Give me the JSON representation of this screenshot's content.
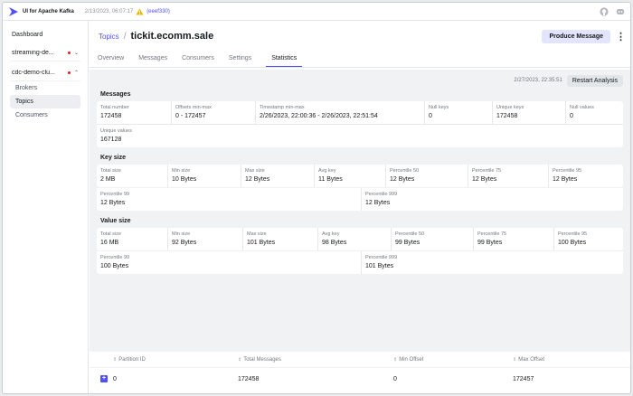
{
  "app": {
    "title": "UI for Apache Kafka",
    "version_date": "2/13/2023, 06:07:17",
    "version_hash": "(eeef330)"
  },
  "sidebar": {
    "dashboard": "Dashboard",
    "clusters": [
      {
        "name": "streaming-de..."
      },
      {
        "name": "cdc-demo-clu..."
      }
    ],
    "items": [
      "Brokers",
      "Topics",
      "Consumers"
    ]
  },
  "header": {
    "breadcrumb": "Topics",
    "topic": "tickit.ecomm.sale",
    "produce_label": "Produce Message"
  },
  "tabs": [
    "Overview",
    "Messages",
    "Consumers",
    "Settings",
    "Statistics"
  ],
  "analysis": {
    "date": "2/27/2023, 22:35:51",
    "restart_label": "Restart Analysis"
  },
  "messages": {
    "title": "Messages",
    "cells": [
      {
        "label": "Total number",
        "value": "172458"
      },
      {
        "label": "Offsets min-max",
        "value": "0 - 172457"
      },
      {
        "label": "Timestamp min-max",
        "value": "2/26/2023, 22:00:36 - 2/26/2023, 22:51:54"
      },
      {
        "label": "Null keys",
        "value": "0"
      },
      {
        "label": "Unique keys",
        "value": "172458"
      },
      {
        "label": "Null values",
        "value": "0"
      }
    ],
    "extra": {
      "label": "Unique values",
      "value": "167128"
    }
  },
  "key_size": {
    "title": "Key size",
    "cells": [
      {
        "label": "Total size",
        "value": "2 MB"
      },
      {
        "label": "Min size",
        "value": "10 Bytes"
      },
      {
        "label": "Max size",
        "value": "12 Bytes"
      },
      {
        "label": "Avg key",
        "value": "11 Bytes"
      },
      {
        "label": "Percentile 50",
        "value": "12 Bytes"
      },
      {
        "label": "Percentile 75",
        "value": "12 Bytes"
      },
      {
        "label": "Percentile 95",
        "value": "12 Bytes"
      }
    ],
    "extra": [
      {
        "label": "Percentile 99",
        "value": "12 Bytes"
      },
      {
        "label": "Percentile 999",
        "value": "12 Bytes"
      }
    ]
  },
  "value_size": {
    "title": "Value size",
    "cells": [
      {
        "label": "Total size",
        "value": "16 MB"
      },
      {
        "label": "Min size",
        "value": "92 Bytes"
      },
      {
        "label": "Max size",
        "value": "101 Bytes"
      },
      {
        "label": "Avg key",
        "value": "98 Bytes"
      },
      {
        "label": "Percentile 50",
        "value": "99 Bytes"
      },
      {
        "label": "Percentile 75",
        "value": "99 Bytes"
      },
      {
        "label": "Percentile 95",
        "value": "100 Bytes"
      }
    ],
    "extra": [
      {
        "label": "Percentile 99",
        "value": "100 Bytes"
      },
      {
        "label": "Percentile 999",
        "value": "101 Bytes"
      }
    ]
  },
  "partitions": {
    "headers": [
      "Partition ID",
      "Total Messages",
      "Min Offset",
      "Max Offset"
    ],
    "rows": [
      {
        "id": "0",
        "total": "172458",
        "min": "0",
        "max": "172457"
      }
    ]
  },
  "icons": {
    "logo": "kafka-logo-icon",
    "warning": "warning-icon",
    "github": "github-icon",
    "discord": "discord-icon"
  },
  "colors": {
    "accent": "#4f4ffb",
    "warning": "#f2b600"
  }
}
